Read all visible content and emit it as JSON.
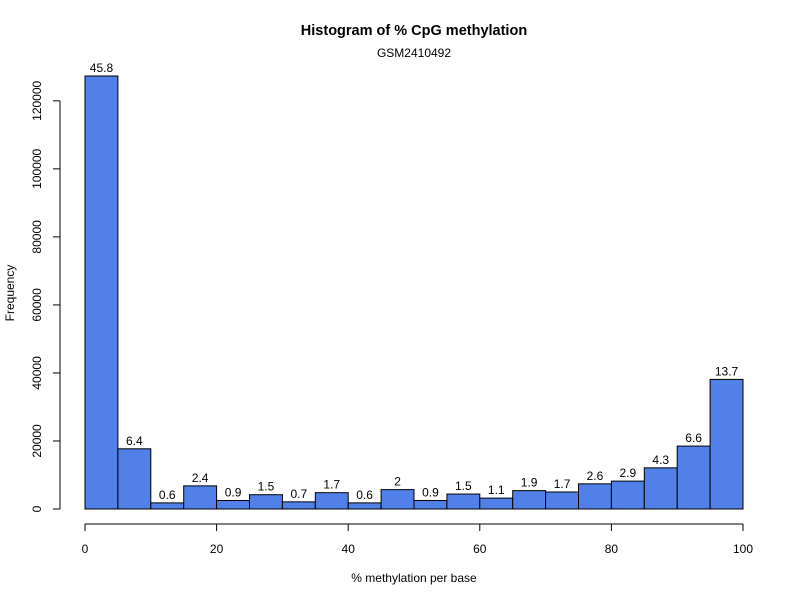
{
  "chart_data": {
    "type": "bar",
    "title": "Histogram of % CpG methylation",
    "subtitle": "GSM2410492",
    "xlabel": "% methylation per base",
    "ylabel": "Frequency",
    "bin_edges": [
      0,
      5,
      10,
      15,
      20,
      25,
      30,
      35,
      40,
      45,
      50,
      55,
      60,
      65,
      70,
      75,
      80,
      85,
      90,
      95,
      100
    ],
    "values": [
      127300,
      17700,
      1800,
      6800,
      2500,
      4200,
      2100,
      4800,
      1800,
      5700,
      2500,
      4400,
      3200,
      5400,
      5000,
      7400,
      8200,
      12100,
      18500,
      38100
    ],
    "bar_labels": [
      "45.8",
      "6.4",
      "0.6",
      "2.4",
      "0.9",
      "1.5",
      "0.7",
      "1.7",
      "0.6",
      "2",
      "0.9",
      "1.5",
      "1.1",
      "1.9",
      "1.7",
      "2.6",
      "2.9",
      "4.3",
      "6.6",
      "13.7"
    ],
    "xlim": [
      0,
      100
    ],
    "ylim": [
      0,
      127300
    ],
    "x_ticks": [
      0,
      20,
      40,
      60,
      80,
      100
    ],
    "y_ticks": [
      0,
      20000,
      40000,
      60000,
      80000,
      100000,
      120000
    ],
    "bar_color": "#5080e8",
    "grid": false
  }
}
